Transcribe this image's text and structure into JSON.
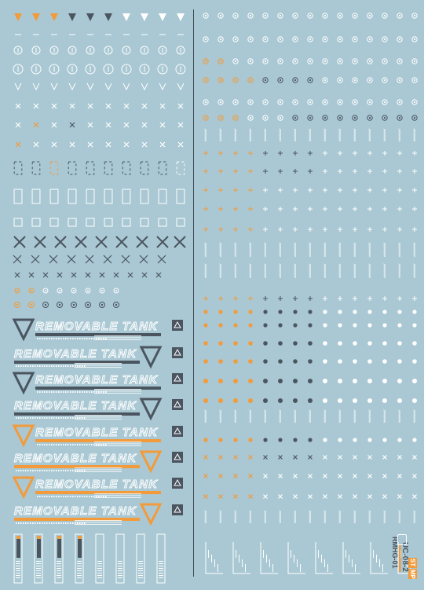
{
  "sheet": {
    "background": "#a9c8d3",
    "colors": {
      "white": "#ffffff",
      "orange": "#f39a3a",
      "dark": "#4b5560"
    },
    "removable_tank_labels": [
      {
        "text": "REMOVABLE TANK",
        "accent": "dark",
        "triangle_side": "left"
      },
      {
        "text": "REMOVABLE TANK",
        "accent": "dark",
        "triangle_side": "right"
      },
      {
        "text": "REMOVABLE TANK",
        "accent": "dark",
        "triangle_side": "left"
      },
      {
        "text": "REMOVABLE TANK",
        "accent": "dark",
        "triangle_side": "right"
      },
      {
        "text": "REMOVABLE TANK",
        "accent": "orange",
        "triangle_side": "left"
      },
      {
        "text": "REMOVABLE TANK",
        "accent": "orange",
        "triangle_side": "right"
      },
      {
        "text": "REMOVABLE TANK",
        "accent": "orange",
        "triangle_side": "left"
      },
      {
        "text": "REMOVABLE TANK",
        "accent": "orange",
        "triangle_side": "right"
      }
    ],
    "sheet_code": {
      "line1": "RMHG-01",
      "line2": "UC-08-2",
      "badge_left": "ST",
      "badge_right": "MP"
    }
  }
}
